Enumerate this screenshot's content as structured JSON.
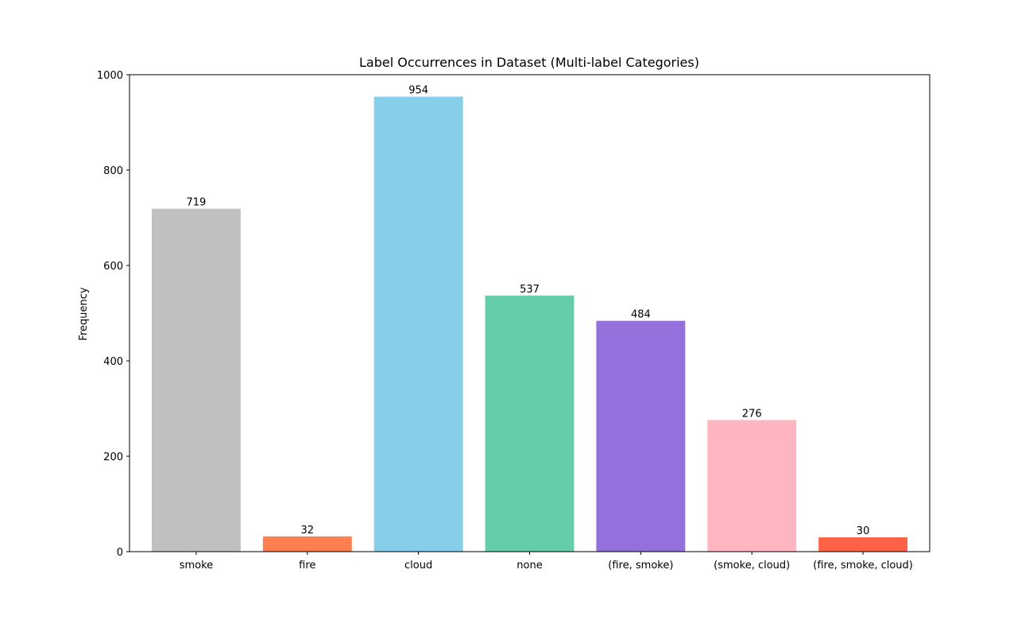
{
  "chart_data": {
    "type": "bar",
    "title": "Label Occurrences in Dataset (Multi-label Categories)",
    "xlabel": "",
    "ylabel": "Frequency",
    "categories": [
      "smoke",
      "fire",
      "cloud",
      "none",
      "(fire, smoke)",
      "(smoke, cloud)",
      "(fire, smoke, cloud)"
    ],
    "values": [
      719,
      32,
      954,
      537,
      484,
      276,
      30
    ],
    "data_labels": [
      "719",
      "32",
      "954",
      "537",
      "484",
      "276",
      "30"
    ],
    "colors": [
      "#c0c0c0",
      "#ff7f50",
      "#87ceeb",
      "#66cdaa",
      "#9370db",
      "#ffb6c1",
      "#ff6347"
    ],
    "ylim": [
      0,
      1000
    ],
    "yticks": [
      0,
      200,
      400,
      600,
      800,
      1000
    ],
    "grid": false,
    "legend": "none"
  }
}
